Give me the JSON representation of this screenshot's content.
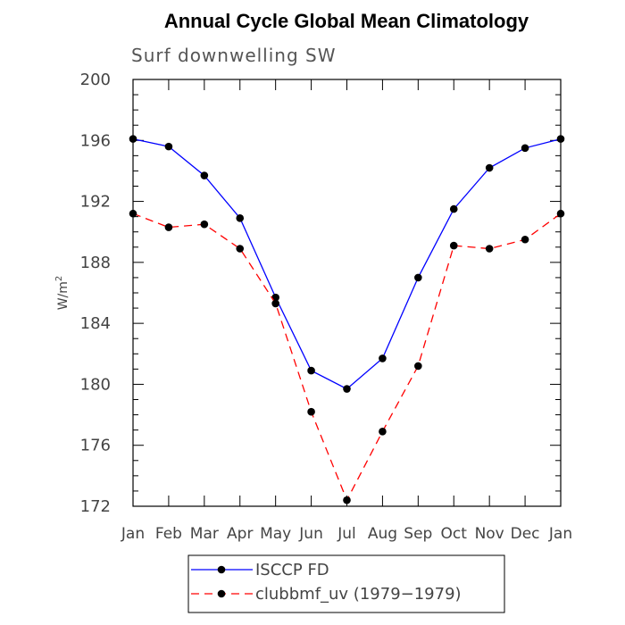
{
  "chart_data": {
    "type": "line",
    "title": "Annual Cycle Global Mean Climatology",
    "subtitle": "Surf downwelling SW",
    "ylabel_base": "W/m",
    "ylabel_sup": "2",
    "xlabel": "",
    "categories": [
      "Jan",
      "Feb",
      "Mar",
      "Apr",
      "May",
      "Jun",
      "Jul",
      "Aug",
      "Sep",
      "Oct",
      "Nov",
      "Dec",
      "Jan"
    ],
    "ylim": [
      172,
      200
    ],
    "yticks": [
      172,
      176,
      180,
      184,
      188,
      192,
      196,
      200
    ],
    "grid": false,
    "legend_position": "bottom-center",
    "series": [
      {
        "name": "ISCCP FD",
        "color": "#0000ff",
        "dash": "solid",
        "marker": "filled-circle",
        "values": [
          196.1,
          195.6,
          193.7,
          190.9,
          185.7,
          180.9,
          179.7,
          181.7,
          187.0,
          191.5,
          194.2,
          195.5,
          196.1
        ]
      },
      {
        "name": "clubbmf_uv (1979−1979)",
        "color": "#ff0000",
        "dash": "dashed",
        "marker": "filled-circle",
        "values": [
          191.2,
          190.3,
          190.5,
          188.9,
          185.3,
          178.2,
          172.4,
          176.9,
          181.2,
          189.1,
          188.9,
          189.5,
          191.2
        ]
      }
    ]
  }
}
